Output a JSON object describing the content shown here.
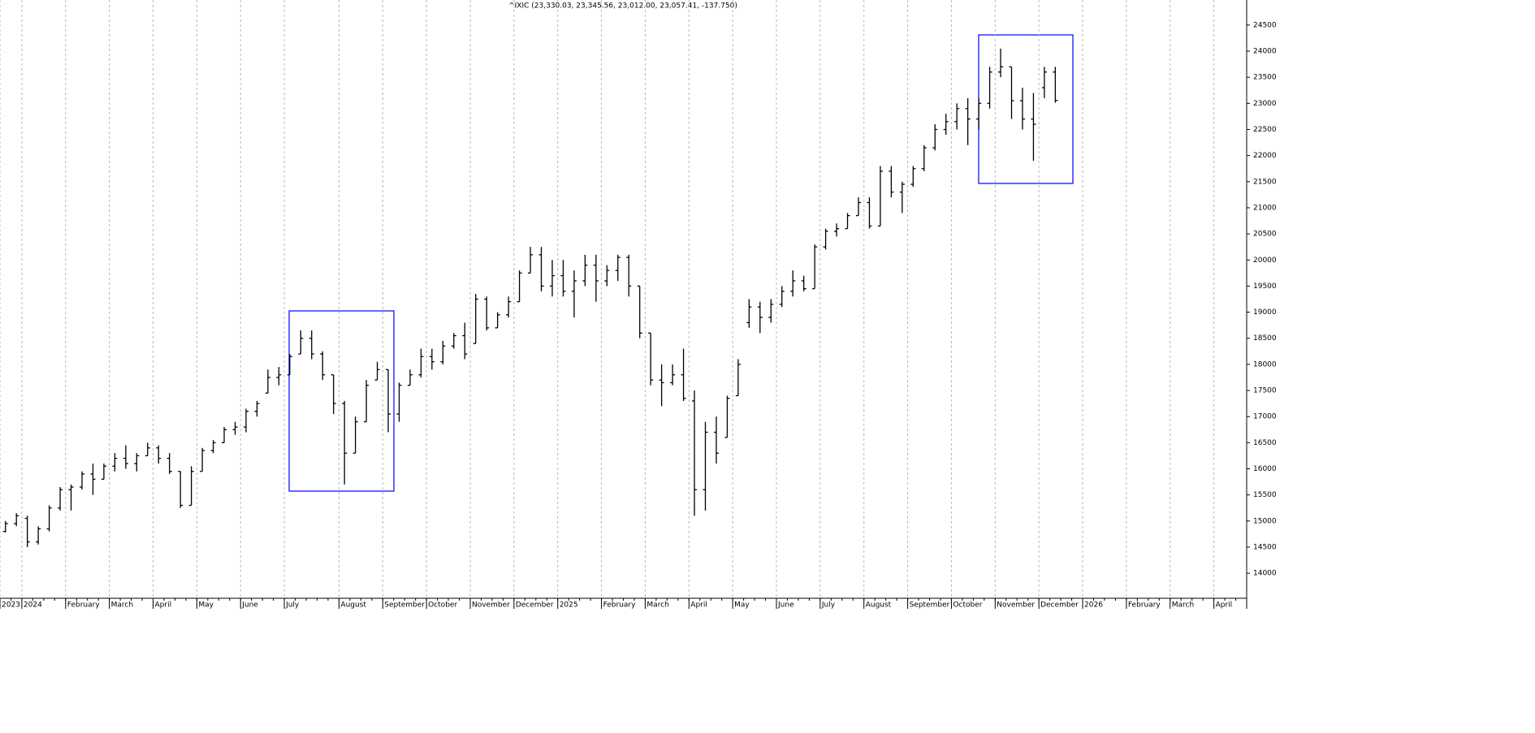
{
  "chart_data": {
    "type": "ohlc",
    "title": "^IXIC (23,330.03, 23,345.56, 23,012.00, 23,057.41, -137.750)",
    "color": "#000000",
    "grid": true,
    "categories": [
      "2023",
      null,
      "2024",
      null,
      null,
      null,
      "February",
      null,
      null,
      null,
      "March",
      null,
      null,
      null,
      "April",
      null,
      null,
      null,
      "May",
      null,
      null,
      null,
      "June",
      null,
      null,
      null,
      "July",
      null,
      null,
      null,
      null,
      "August",
      null,
      null,
      null,
      "September",
      null,
      null,
      null,
      "October",
      null,
      null,
      null,
      "November",
      null,
      null,
      null,
      "December",
      null,
      null,
      null,
      "2025",
      null,
      null,
      null,
      "February",
      null,
      null,
      null,
      "March",
      null,
      null,
      null,
      "April",
      null,
      null,
      null,
      "May",
      null,
      null,
      null,
      "June",
      null,
      null,
      null,
      "July",
      null,
      null,
      null,
      "August",
      null,
      null,
      null,
      "September",
      null,
      null,
      null,
      "October",
      null,
      null,
      null,
      "November",
      null,
      null,
      null,
      "December",
      null,
      null,
      null,
      "2026",
      null,
      null,
      null,
      "February",
      null,
      null,
      null,
      "March",
      null,
      null,
      null,
      "April",
      null,
      null
    ],
    "open": [
      14800,
      14950,
      15050,
      14600,
      14850,
      15250,
      15600,
      15650,
      15900,
      15800,
      16050,
      16200,
      16100,
      16250,
      16400,
      16200,
      15950,
      15300,
      15950,
      16350,
      16500,
      16750,
      16800,
      17100,
      17450,
      17750,
      17800,
      18200,
      18500,
      18200,
      17800,
      17250,
      16300,
      16900,
      17700,
      17900,
      17050,
      17600,
      17800,
      18150,
      18050,
      18350,
      18550,
      18400,
      19250,
      18700,
      18950,
      19200,
      19750,
      20100,
      19500,
      19700,
      19400,
      19600,
      19900,
      19600,
      19800,
      20050,
      19500,
      18600,
      17700,
      17650,
      17800,
      17300,
      15600,
      16700,
      16600,
      17400,
      18800,
      19100,
      18900,
      19150,
      19400,
      19600,
      19450,
      20250,
      20550,
      20600,
      20850,
      21100,
      20650,
      21700,
      21300,
      21450,
      21750,
      22150,
      22500,
      22650,
      22900,
      22700,
      23000,
      23600,
      23700,
      23050,
      22700,
      23300,
      23600,
      null,
      null,
      null,
      null,
      null,
      null,
      null,
      null,
      null,
      null,
      null,
      null,
      null,
      null,
      null,
      null,
      null
    ],
    "high": [
      15000,
      15150,
      15100,
      14900,
      15300,
      15650,
      15700,
      15950,
      16100,
      16100,
      16300,
      16450,
      16300,
      16500,
      16450,
      16300,
      15950,
      16050,
      16400,
      16550,
      16800,
      16900,
      17150,
      17300,
      17900,
      17950,
      18200,
      18650,
      18650,
      18250,
      17800,
      17300,
      17000,
      17700,
      18050,
      17900,
      17650,
      17900,
      18300,
      18300,
      18450,
      18600,
      18800,
      19350,
      19300,
      19000,
      19300,
      19800,
      20250,
      20250,
      20000,
      20000,
      19800,
      20100,
      20100,
      19900,
      20100,
      20100,
      19500,
      18600,
      18000,
      18000,
      18300,
      17500,
      16900,
      17000,
      17400,
      18100,
      19250,
      19200,
      19250,
      19500,
      19800,
      19700,
      20300,
      20600,
      20700,
      20900,
      21200,
      21200,
      21800,
      21800,
      21500,
      21800,
      22200,
      22600,
      22800,
      23000,
      23100,
      23100,
      23700,
      24050,
      23700,
      23300,
      23200,
      23700,
      23700,
      null,
      null,
      null,
      null,
      null,
      null,
      null,
      null,
      null,
      null,
      null,
      null,
      null,
      null,
      null,
      null,
      null
    ],
    "low": [
      14780,
      14900,
      14500,
      14550,
      14800,
      15200,
      15200,
      15600,
      15500,
      15800,
      15950,
      16000,
      15950,
      16250,
      16100,
      15900,
      15250,
      15300,
      15950,
      16300,
      16500,
      16650,
      16700,
      17000,
      17450,
      17600,
      17800,
      18200,
      18100,
      17700,
      17050,
      15700,
      16300,
      16900,
      17700,
      16700,
      16900,
      17600,
      17750,
      17900,
      18000,
      18300,
      18100,
      18400,
      18650,
      18700,
      18900,
      19200,
      19750,
      19400,
      19300,
      19300,
      18900,
      19500,
      19200,
      19500,
      19600,
      19300,
      18500,
      17600,
      17200,
      17600,
      17300,
      15100,
      15200,
      16100,
      16600,
      17400,
      18700,
      18600,
      18800,
      19100,
      19300,
      19400,
      19450,
      20200,
      20450,
      20600,
      20850,
      20600,
      20650,
      21200,
      20900,
      21400,
      21700,
      22100,
      22400,
      22500,
      22200,
      22500,
      22900,
      23500,
      22700,
      22500,
      21900,
      23100,
      23012,
      null,
      null,
      null,
      null,
      null,
      null,
      null,
      null,
      null,
      null,
      null,
      null,
      null,
      null,
      null,
      null,
      null
    ],
    "close": [
      14950,
      15100,
      14600,
      14850,
      15250,
      15600,
      15650,
      15900,
      15800,
      16050,
      16200,
      16100,
      16250,
      16400,
      16200,
      15950,
      15300,
      15950,
      16350,
      16500,
      16750,
      16800,
      17100,
      17250,
      17750,
      17800,
      18150,
      18500,
      18200,
      17800,
      17250,
      16300,
      16900,
      17600,
      17900,
      17050,
      17600,
      17800,
      18150,
      18050,
      18350,
      18550,
      18200,
      19250,
      18700,
      18950,
      19200,
      19750,
      20100,
      19500,
      19700,
      19400,
      19600,
      19900,
      19600,
      19800,
      20050,
      19500,
      18600,
      17700,
      17650,
      17800,
      17350,
      15600,
      16700,
      16300,
      17350,
      18000,
      19100,
      18900,
      19150,
      19400,
      19600,
      19450,
      20250,
      20550,
      20600,
      20850,
      21100,
      20650,
      21700,
      21300,
      21450,
      21750,
      22150,
      22500,
      22650,
      22900,
      22700,
      23000,
      23600,
      23700,
      23050,
      22700,
      22600,
      23600,
      23057.41,
      null,
      null,
      null,
      null,
      null,
      null,
      null,
      null,
      null,
      null,
      null,
      null,
      null,
      null,
      null,
      null,
      null
    ],
    "ylim": [
      13520,
      24980
    ],
    "yticks": [
      14000,
      14500,
      15000,
      15500,
      16000,
      16500,
      17000,
      17500,
      18000,
      18500,
      19000,
      19500,
      20000,
      20500,
      21000,
      21500,
      22000,
      22500,
      23000,
      23500,
      24000,
      24500
    ]
  }
}
